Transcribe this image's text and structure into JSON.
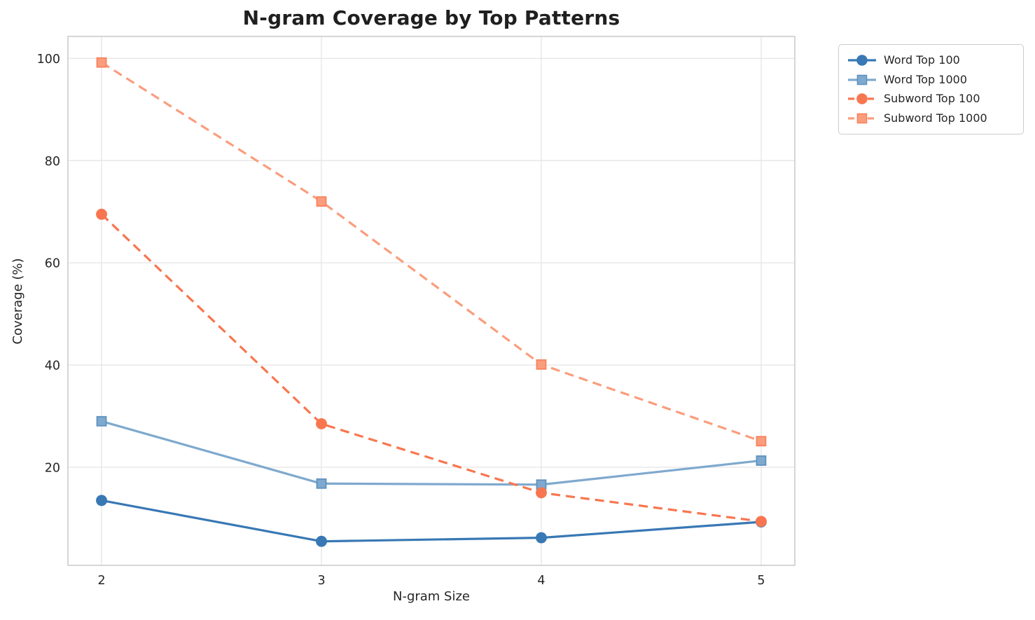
{
  "chart_data": {
    "type": "line",
    "title": "N-gram Coverage by Top Patterns",
    "xlabel": "N-gram Size",
    "ylabel": "Coverage (%)",
    "x": [
      2,
      3,
      4,
      5
    ],
    "x_tick_labels": [
      "2",
      "3",
      "4",
      "5"
    ],
    "y_ticks": [
      20,
      40,
      60,
      80,
      100
    ],
    "y_tick_labels": [
      "20",
      "40",
      "60",
      "80",
      "100"
    ],
    "xlim": [
      1.847,
      5.153
    ],
    "ylim": [
      0.8,
      104.3
    ],
    "grid": true,
    "legend_position": "outside-upper-right",
    "series": [
      {
        "name": "Word Top 100",
        "color": "#3878B4",
        "edge": "#3878B4",
        "marker": "circle",
        "dash": null,
        "values": [
          13.5,
          5.5,
          6.2,
          9.3
        ]
      },
      {
        "name": "Word Top 1000",
        "color": "#7FA9CE",
        "edge": "#5E92C0",
        "marker": "square",
        "dash": null,
        "values": [
          29.0,
          16.8,
          16.6,
          21.3
        ]
      },
      {
        "name": "Subword Top 100",
        "color": "#F8764F",
        "edge": "#F8764F",
        "marker": "circle",
        "dash": "13 8",
        "values": [
          69.5,
          28.5,
          15.0,
          9.4
        ]
      },
      {
        "name": "Subword Top 1000",
        "color": "#FA9D7D",
        "edge": "#F8825E",
        "marker": "square",
        "dash": "13 8",
        "values": [
          99.2,
          72.0,
          40.1,
          25.1
        ]
      }
    ],
    "colors": {
      "background": "#ffffff",
      "grid": "#e7e7e7",
      "spine": "#cccccc",
      "text": "#262626",
      "title_text": "#1f1f1f"
    }
  }
}
